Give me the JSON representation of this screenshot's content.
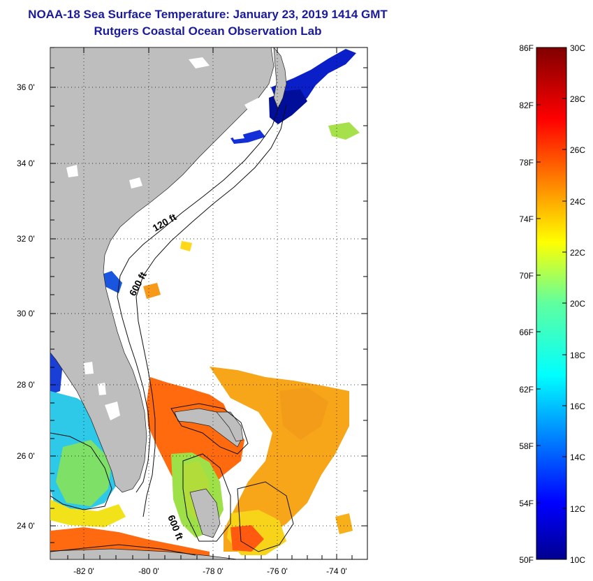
{
  "header": {
    "title": "NOAA-18 Sea Surface Temperature:  January 23, 2019 1414 GMT",
    "subtitle": "Rutgers Coastal Ocean Observation Lab"
  },
  "map": {
    "lat_labels": [
      "36 0'",
      "34 0'",
      "32 0'",
      "30 0'",
      "28 0'",
      "26 0'",
      "24 0'"
    ],
    "lon_labels": [
      "-82 0'",
      "-80 0'",
      "-78 0'",
      "-76 0'",
      "-74 0'"
    ],
    "contours": {
      "shallow": "120 ft",
      "deep": "600 ft",
      "deep_south": "600 ft"
    }
  },
  "colorbar": {
    "fahrenheit_labels": [
      "86F",
      "82F",
      "78F",
      "74F",
      "70F",
      "66F",
      "62F",
      "58F",
      "54F",
      "50F"
    ],
    "celsius_labels": [
      "30C",
      "28C",
      "26C",
      "24C",
      "22C",
      "20C",
      "18C",
      "16C",
      "14C",
      "12C",
      "10C"
    ],
    "range_c": [
      10,
      30
    ]
  },
  "colors": {
    "title": "#1a1a9c",
    "land": "#bebebe",
    "ocean_no_data": "#ffffff",
    "cold": "#00008f",
    "warm": "#800000"
  }
}
